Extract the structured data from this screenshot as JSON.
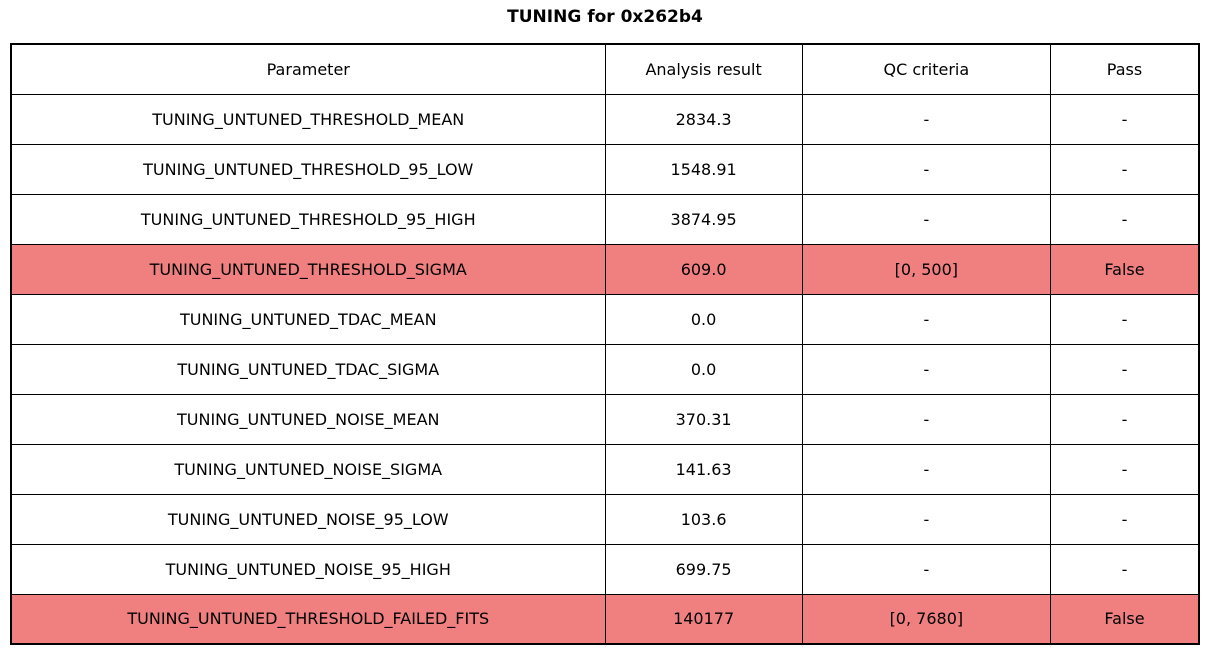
{
  "title": "TUNING for 0x262b4",
  "colors": {
    "fail_row_bg": "#f08080",
    "border": "#000000",
    "background": "#ffffff"
  },
  "chart_data": {
    "type": "table",
    "title": "TUNING for 0x262b4",
    "columns": [
      "Parameter",
      "Analysis result",
      "QC criteria",
      "Pass"
    ],
    "failed_row_color": "#f08080",
    "rows": [
      {
        "parameter": "TUNING_UNTUNED_THRESHOLD_MEAN",
        "result": "2834.3",
        "qc": "-",
        "pass": "-",
        "failed": false
      },
      {
        "parameter": "TUNING_UNTUNED_THRESHOLD_95_LOW",
        "result": "1548.91",
        "qc": "-",
        "pass": "-",
        "failed": false
      },
      {
        "parameter": "TUNING_UNTUNED_THRESHOLD_95_HIGH",
        "result": "3874.95",
        "qc": "-",
        "pass": "-",
        "failed": false
      },
      {
        "parameter": "TUNING_UNTUNED_THRESHOLD_SIGMA",
        "result": "609.0",
        "qc": "[0, 500]",
        "pass": "False",
        "failed": true
      },
      {
        "parameter": "TUNING_UNTUNED_TDAC_MEAN",
        "result": "0.0",
        "qc": "-",
        "pass": "-",
        "failed": false
      },
      {
        "parameter": "TUNING_UNTUNED_TDAC_SIGMA",
        "result": "0.0",
        "qc": "-",
        "pass": "-",
        "failed": false
      },
      {
        "parameter": "TUNING_UNTUNED_NOISE_MEAN",
        "result": "370.31",
        "qc": "-",
        "pass": "-",
        "failed": false
      },
      {
        "parameter": "TUNING_UNTUNED_NOISE_SIGMA",
        "result": "141.63",
        "qc": "-",
        "pass": "-",
        "failed": false
      },
      {
        "parameter": "TUNING_UNTUNED_NOISE_95_LOW",
        "result": "103.6",
        "qc": "-",
        "pass": "-",
        "failed": false
      },
      {
        "parameter": "TUNING_UNTUNED_NOISE_95_HIGH",
        "result": "699.75",
        "qc": "-",
        "pass": "-",
        "failed": false
      },
      {
        "parameter": "TUNING_UNTUNED_THRESHOLD_FAILED_FITS",
        "result": "140177",
        "qc": "[0, 7680]",
        "pass": "False",
        "failed": true
      }
    ]
  }
}
